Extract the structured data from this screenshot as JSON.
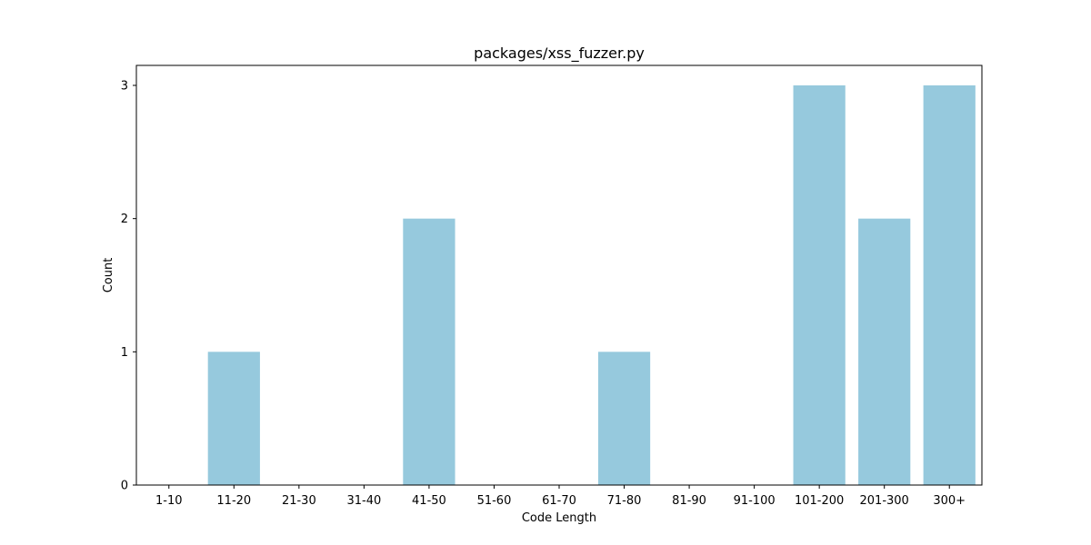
{
  "chart_data": {
    "type": "bar",
    "title": "packages/xss_fuzzer.py",
    "xlabel": "Code Length",
    "ylabel": "Count",
    "categories": [
      "1-10",
      "11-20",
      "21-30",
      "31-40",
      "41-50",
      "51-60",
      "61-70",
      "71-80",
      "81-90",
      "91-100",
      "101-200",
      "201-300",
      "300+"
    ],
    "values": [
      0,
      1,
      0,
      0,
      2,
      0,
      0,
      1,
      0,
      0,
      3,
      2,
      3
    ],
    "ylim": [
      0,
      3.15
    ],
    "yticks": [
      0,
      1,
      2,
      3
    ],
    "grid": false,
    "bar_color": "#96c9dd"
  }
}
